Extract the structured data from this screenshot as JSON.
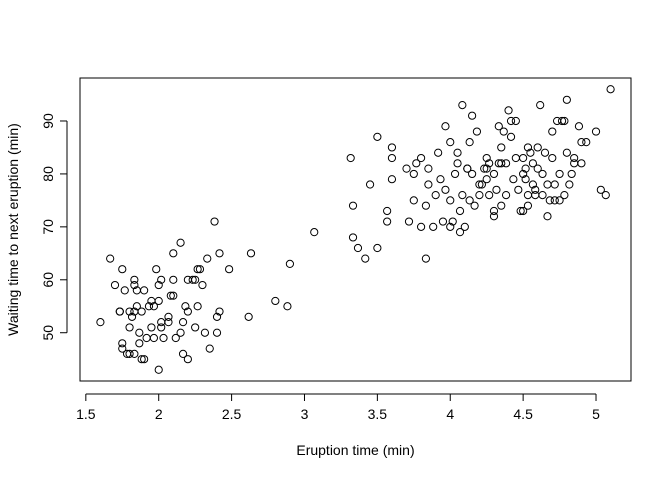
{
  "chart_data": {
    "type": "scatter",
    "x_label": "Eruption time (min)",
    "y_label": "Waiting time to next eruption (min)",
    "color": "#000000",
    "xlim": [
      1.46,
      5.24
    ],
    "ylim": [
      40.88,
      98.12
    ],
    "xticks": [
      1.5,
      2.0,
      2.5,
      3.0,
      3.5,
      4.0,
      4.5,
      5.0
    ],
    "yticks": [
      50,
      60,
      70,
      80,
      90
    ],
    "x": [
      1.6,
      1.667,
      1.7,
      1.733,
      1.75,
      1.75,
      1.75,
      1.767,
      1.783,
      1.8,
      1.8,
      1.817,
      1.833,
      1.833,
      1.833,
      1.833,
      1.85,
      1.867,
      1.867,
      1.883,
      1.883,
      1.9,
      1.917,
      1.933,
      1.95,
      1.967,
      1.983,
      2.0,
      2.0,
      2.017,
      2.017,
      2.033,
      2.067,
      2.083,
      2.1,
      2.1,
      2.15,
      2.15,
      2.167,
      2.167,
      2.2,
      2.2,
      2.233,
      2.25,
      2.267,
      2.283,
      2.3,
      2.333,
      2.35,
      2.383,
      2.4,
      2.417,
      2.417,
      2.483,
      2.0,
      2.2,
      2.25,
      2.267,
      2.317,
      1.9,
      1.967,
      2.067,
      2.117,
      2.183,
      1.85,
      1.8,
      2.4,
      1.95,
      2.1,
      1.733,
      2.017,
      2.8,
      2.883,
      2.9,
      3.067,
      2.617,
      2.633,
      3.317,
      3.333,
      3.333,
      3.367,
      3.417,
      3.5,
      3.5,
      3.45,
      3.567,
      3.567,
      3.6,
      3.6,
      3.6,
      3.7,
      3.717,
      3.75,
      3.833,
      3.833,
      3.85,
      3.917,
      3.95,
      3.967,
      4.0,
      4.0,
      4.0,
      4.033,
      4.05,
      4.067,
      4.083,
      4.083,
      4.1,
      4.117,
      4.133,
      4.15,
      4.167,
      4.183,
      4.2,
      4.217,
      4.25,
      4.25,
      4.267,
      4.3,
      4.3,
      4.333,
      4.333,
      4.35,
      4.367,
      4.383,
      4.4,
      4.417,
      4.433,
      4.45,
      4.467,
      4.5,
      4.5,
      4.5,
      4.517,
      4.533,
      4.533,
      4.55,
      4.567,
      4.583,
      4.6,
      4.617,
      4.633,
      4.65,
      4.667,
      4.683,
      4.7,
      4.7,
      4.717,
      4.733,
      4.75,
      4.767,
      4.783,
      4.8,
      4.8,
      4.817,
      4.833,
      4.85,
      4.883,
      4.9,
      4.933,
      5.0,
      5.033,
      5.067,
      5.1,
      3.883,
      3.9,
      3.933,
      3.967,
      4.017,
      4.05,
      4.067,
      4.117,
      4.133,
      4.15,
      4.2,
      4.233,
      4.267,
      4.3,
      4.317,
      4.35,
      4.383,
      4.417,
      4.45,
      4.483,
      4.517,
      4.567,
      4.6,
      4.633,
      4.667,
      4.717,
      4.75,
      4.783,
      4.85,
      4.9,
      4.533,
      4.583,
      4.35,
      4.25,
      3.85,
      3.767,
      3.8,
      3.75,
      3.8
    ],
    "y": [
      52,
      64,
      59,
      54,
      47,
      62,
      48,
      58,
      46,
      51,
      54,
      53,
      54,
      59,
      60,
      46,
      58,
      48,
      50,
      54,
      45,
      58,
      49,
      55,
      51,
      55,
      62,
      56,
      59,
      52,
      60,
      49,
      53,
      57,
      57,
      65,
      67,
      50,
      46,
      52,
      54,
      60,
      60,
      60,
      62,
      62,
      59,
      64,
      47,
      71,
      53,
      54,
      65,
      62,
      43,
      45,
      51,
      55,
      50,
      45,
      49,
      52,
      49,
      55,
      55,
      46,
      50,
      56,
      60,
      54,
      51,
      56,
      55,
      63,
      69,
      53,
      65,
      83,
      74,
      68,
      66,
      64,
      66,
      87,
      78,
      71,
      73,
      79,
      83,
      85,
      81,
      71,
      75,
      64,
      74,
      78,
      84,
      71,
      89,
      70,
      75,
      86,
      80,
      82,
      73,
      76,
      93,
      70,
      81,
      75,
      91,
      74,
      88,
      78,
      78,
      79,
      83,
      82,
      73,
      80,
      89,
      82,
      85,
      88,
      82,
      92,
      90,
      79,
      90,
      77,
      73,
      80,
      83,
      81,
      74,
      85,
      84,
      78,
      77,
      85,
      93,
      80,
      84,
      78,
      75,
      83,
      88,
      75,
      90,
      75,
      90,
      90,
      84,
      94,
      78,
      80,
      83,
      89,
      86,
      86,
      88,
      77,
      76,
      96,
      70,
      76,
      79,
      77,
      71,
      84,
      69,
      81,
      86,
      80,
      76,
      81,
      76,
      72,
      77,
      82,
      76,
      87,
      83,
      73,
      79,
      82,
      81,
      76,
      72,
      78,
      80,
      76,
      82,
      82,
      76,
      76,
      74,
      81,
      81,
      82,
      83,
      80,
      70
    ]
  }
}
